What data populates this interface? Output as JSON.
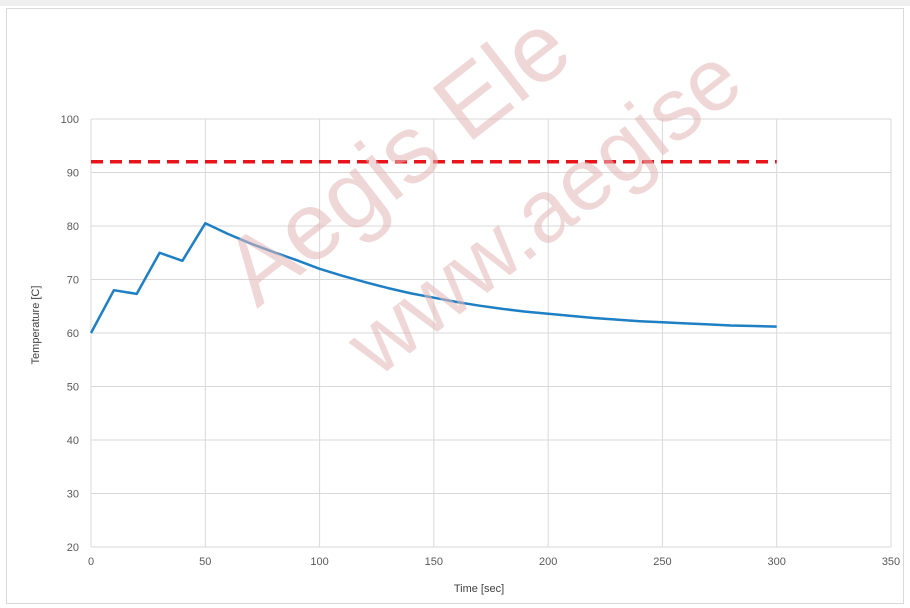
{
  "chart_data": {
    "type": "line",
    "title": "",
    "xlabel": "Time [sec]",
    "ylabel": "Temperature [C]",
    "xlim": [
      0,
      350
    ],
    "ylim": [
      20,
      100
    ],
    "x_ticks": [
      0,
      50,
      100,
      150,
      200,
      250,
      300,
      350
    ],
    "y_ticks": [
      20,
      30,
      40,
      50,
      60,
      70,
      80,
      90,
      100
    ],
    "grid": true,
    "legend": "none",
    "series": [
      {
        "style": "solid",
        "color": "#1f7fc4",
        "x": [
          0,
          10,
          20,
          30,
          40,
          50,
          60,
          70,
          80,
          90,
          100,
          110,
          120,
          130,
          140,
          150,
          160,
          170,
          180,
          190,
          200,
          210,
          220,
          230,
          240,
          250,
          260,
          270,
          280,
          290,
          300
        ],
        "y": [
          60.0,
          68.0,
          67.3,
          75.0,
          73.5,
          80.5,
          78.5,
          76.7,
          75.1,
          73.6,
          72.0,
          70.7,
          69.5,
          68.4,
          67.4,
          66.6,
          65.8,
          65.1,
          64.5,
          64.0,
          63.6,
          63.2,
          62.8,
          62.5,
          62.2,
          62.0,
          61.8,
          61.6,
          61.4,
          61.3,
          61.2
        ]
      },
      {
        "style": "dashed",
        "color": "#e8141b",
        "x": [
          0,
          300
        ],
        "y": [
          92,
          92
        ]
      }
    ]
  },
  "watermark": {
    "line1": "Aegis Ele",
    "line2": "www.aegise"
  }
}
